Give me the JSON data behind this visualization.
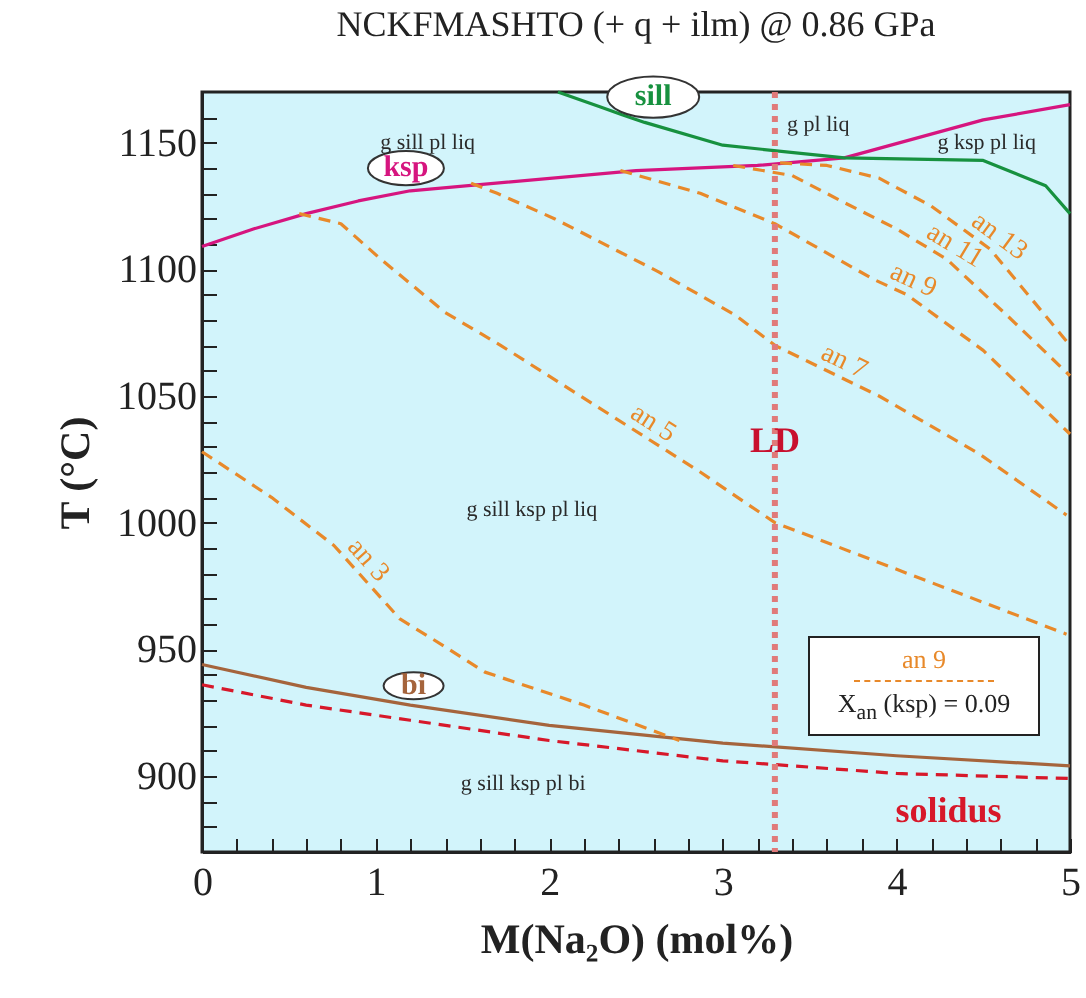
{
  "chart_data": {
    "type": "line",
    "title": "NCKFMASHTO  (+ q + ilm)    @ 0.86 GPa",
    "xlabel": "M(Na₂O) (mol%)",
    "ylabel": "T (°C)",
    "xlim": [
      0,
      5
    ],
    "ylim": [
      870,
      1170
    ],
    "xticks": [
      0,
      {
        "value": 0.2,
        "label": null
      },
      {
        "value": 0.4,
        "label": null
      },
      {
        "value": 0.6,
        "label": null
      },
      {
        "value": 0.8,
        "label": null
      },
      1,
      {
        "value": 1.2,
        "label": null
      },
      {
        "value": 1.4,
        "label": null
      },
      {
        "value": 1.6,
        "label": null
      },
      {
        "value": 1.8,
        "label": null
      },
      2,
      {
        "value": 2.2,
        "label": null
      },
      {
        "value": 2.4,
        "label": null
      },
      {
        "value": 2.6,
        "label": null
      },
      {
        "value": 2.8,
        "label": null
      },
      3,
      {
        "value": 3.2,
        "label": null
      },
      {
        "value": 3.4,
        "label": null
      },
      {
        "value": 3.6,
        "label": null
      },
      {
        "value": 3.8,
        "label": null
      },
      4,
      {
        "value": 4.2,
        "label": null
      },
      {
        "value": 4.4,
        "label": null
      },
      {
        "value": 4.6,
        "label": null
      },
      {
        "value": 4.8,
        "label": null
      },
      5
    ],
    "yticks": [
      {
        "value": 880,
        "label": null
      },
      {
        "value": 890,
        "label": null
      },
      900,
      {
        "value": 910,
        "label": null
      },
      {
        "value": 920,
        "label": null
      },
      {
        "value": 930,
        "label": null
      },
      {
        "value": 940,
        "label": null
      },
      950,
      {
        "value": 960,
        "label": null
      },
      {
        "value": 970,
        "label": null
      },
      {
        "value": 980,
        "label": null
      },
      {
        "value": 990,
        "label": null
      },
      1000,
      {
        "value": 1010,
        "label": null
      },
      {
        "value": 1020,
        "label": null
      },
      {
        "value": 1030,
        "label": null
      },
      {
        "value": 1040,
        "label": null
      },
      1050,
      {
        "value": 1060,
        "label": null
      },
      {
        "value": 1070,
        "label": null
      },
      {
        "value": 1080,
        "label": null
      },
      {
        "value": 1090,
        "label": null
      },
      1100,
      {
        "value": 1110,
        "label": null
      },
      {
        "value": 1120,
        "label": null
      },
      {
        "value": 1130,
        "label": null
      },
      {
        "value": 1140,
        "label": null
      },
      1150,
      {
        "value": 1160,
        "label": null
      }
    ],
    "series": [
      {
        "color": "#d6157f",
        "line_style": "solid",
        "x": [
          0,
          0.3,
          0.6,
          0.9,
          1.2,
          2.5,
          3.2,
          3.7,
          4.5,
          5
        ],
        "values": [
          1109,
          1116,
          1122,
          1127,
          1131,
          1139,
          1141,
          1144,
          1159,
          1165
        ]
      },
      {
        "color": "#17913f",
        "line_style": "solid",
        "x": [
          2.05,
          2.3,
          2.42,
          2.55,
          3.0,
          3.7,
          4.5,
          4.86,
          5
        ],
        "values": [
          1170,
          1164,
          1161,
          1158,
          1149,
          1144,
          1143,
          1133,
          1122
        ]
      },
      {
        "color": "#a5643c",
        "line_style": "solid",
        "x": [
          0,
          0.6,
          1.2,
          2,
          3,
          4,
          5
        ],
        "values": [
          944,
          935,
          928,
          920,
          913,
          908,
          904
        ]
      },
      {
        "color": "#d7182a",
        "line_style": "dashed",
        "x": [
          0,
          0.6,
          1.2,
          2,
          3,
          4,
          5
        ],
        "values": [
          936,
          928,
          922,
          914,
          906,
          901,
          899
        ]
      },
      {
        "color": "#e8892a",
        "line_style": "dashed",
        "x": [
          0,
          0.4,
          0.76,
          1.14,
          1.33,
          1.63,
          2.2,
          2.75
        ],
        "values": [
          1028,
          1010,
          991,
          962,
          954,
          941,
          928,
          914
        ]
      },
      {
        "color": "#e8892a",
        "line_style": "dashed",
        "x": [
          0.56,
          0.8,
          1.03,
          1.4,
          1.72,
          2.18,
          2.87,
          3.3,
          4.1,
          4.98
        ],
        "values": [
          1122,
          1118,
          1104,
          1083,
          1070,
          1050,
          1020,
          1000,
          979,
          956
        ]
      },
      {
        "color": "#e8892a",
        "line_style": "dashed",
        "x": [
          1.55,
          1.7,
          2.03,
          2.63,
          3.07,
          3.3,
          3.9,
          4.48,
          4.98
        ],
        "values": [
          1134,
          1130,
          1120,
          1099,
          1082,
          1070,
          1050,
          1027,
          1003
        ]
      },
      {
        "color": "#e8892a",
        "line_style": "dashed",
        "x": [
          2.41,
          2.87,
          3.3,
          3.87,
          4.06,
          4.5,
          5
        ],
        "values": [
          1139,
          1130,
          1118,
          1096,
          1090,
          1068,
          1035
        ]
      },
      {
        "color": "#e8892a",
        "line_style": "dashed",
        "x": [
          3.06,
          3.4,
          3.71,
          4.0,
          4.29,
          4.65,
          5
        ],
        "values": [
          1141,
          1137,
          1126,
          1116,
          1104,
          1081,
          1058
        ]
      },
      {
        "color": "#e8892a",
        "line_style": "dashed",
        "x": [
          3.33,
          3.6,
          3.9,
          4.2,
          4.54,
          5
        ],
        "values": [
          1142,
          1141,
          1136,
          1125,
          1108,
          1070
        ]
      }
    ],
    "ref_lines": [
      {
        "axis": "x",
        "value": 3.3,
        "label": "LD",
        "color": "#e07a7a",
        "line_style": "dotted"
      }
    ],
    "annotations": [
      {
        "text": "ksp",
        "x": 1.2,
        "y": 1131
      },
      {
        "text": "sill",
        "x": 2.55,
        "y": 1158
      },
      {
        "text": "bi",
        "x": 1.2,
        "y": 928
      },
      {
        "text": "solidus",
        "x": 4.3,
        "y": 900
      },
      {
        "text": "an 3",
        "x": 0.89,
        "y": 981
      },
      {
        "text": "an 5",
        "x": 2.55,
        "y": 1034
      },
      {
        "text": "an 7",
        "x": 3.66,
        "y": 1058
      },
      {
        "text": "an 9",
        "x": 4.06,
        "y": 1090
      },
      {
        "text": "an 11",
        "x": 4.29,
        "y": 1104
      },
      {
        "text": "an 13",
        "x": 4.54,
        "y": 1108
      },
      "g sill pl liq",
      "g pl liq",
      "g ksp pl liq",
      "g sill ksp pl liq",
      "g sill ksp pl bi",
      "an 9",
      "X$_{an}$ (ksp) = 0.09"
    ]
  }
}
